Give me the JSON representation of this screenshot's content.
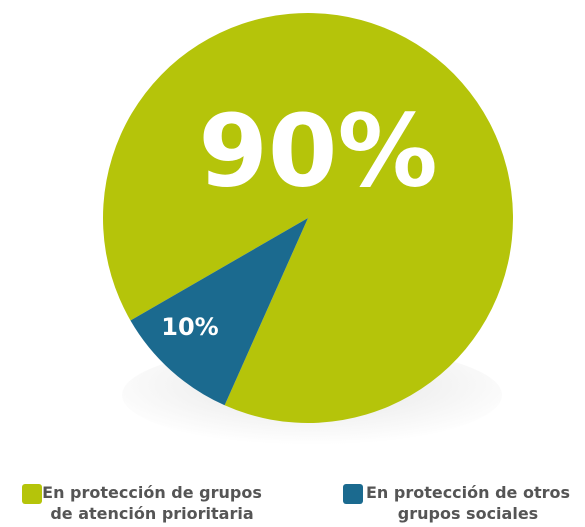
{
  "chart_data": {
    "type": "pie",
    "categories": [
      "En protección de grupos de atención prioritaria",
      "En protección de otros grupos sociales"
    ],
    "values": [
      90,
      10
    ],
    "value_labels": [
      "90%",
      "10%"
    ],
    "colors": [
      "#b5c40a",
      "#1b6a8f"
    ],
    "legend": "bottom"
  }
}
